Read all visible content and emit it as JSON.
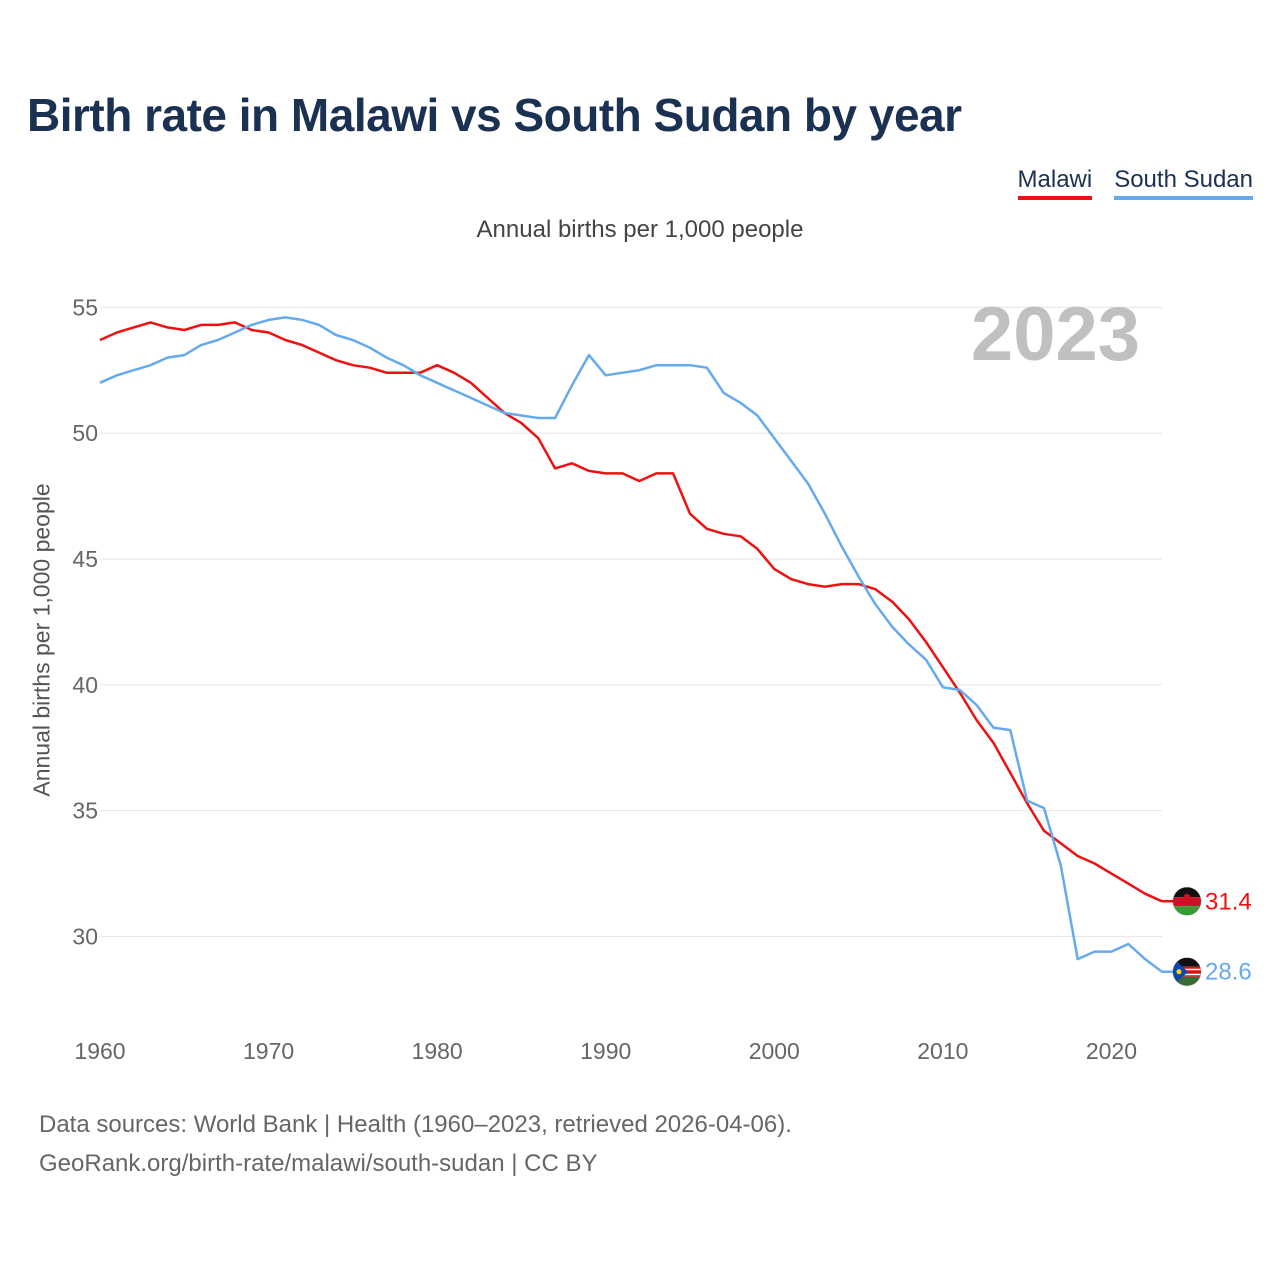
{
  "title": "Birth rate in Malawi vs South Sudan by year",
  "subtitle": "Annual births per 1,000 people",
  "year_badge": "2023",
  "legend": [
    {
      "label": "Malawi",
      "color": "#ee1111"
    },
    {
      "label": "South Sudan",
      "color": "#66aaee"
    }
  ],
  "source_lines": [
    "Data sources: World Bank | Health (1960–2023, retrieved 2026-04-06).",
    "GeoRank.org/birth-rate/malawi/south-sudan | CC BY"
  ],
  "chart_data": {
    "type": "line",
    "title": "Birth rate in Malawi vs South Sudan by year",
    "xlabel": "",
    "ylabel": "Annual births per 1,000 people",
    "xlim": [
      1960,
      2023
    ],
    "ylim": [
      27,
      56.8
    ],
    "grid": true,
    "x_ticks": [
      1960,
      1970,
      1980,
      1990,
      2000,
      2010,
      2020
    ],
    "y_ticks": [
      30,
      35,
      40,
      45,
      50,
      55
    ],
    "x": [
      1960,
      1961,
      1962,
      1963,
      1964,
      1965,
      1966,
      1967,
      1968,
      1969,
      1970,
      1971,
      1972,
      1973,
      1974,
      1975,
      1976,
      1977,
      1978,
      1979,
      1980,
      1981,
      1982,
      1983,
      1984,
      1985,
      1986,
      1987,
      1988,
      1989,
      1990,
      1991,
      1992,
      1993,
      1994,
      1995,
      1996,
      1997,
      1998,
      1999,
      2000,
      2001,
      2002,
      2003,
      2004,
      2005,
      2006,
      2007,
      2008,
      2009,
      2010,
      2011,
      2012,
      2013,
      2014,
      2015,
      2016,
      2017,
      2018,
      2019,
      2020,
      2021,
      2022,
      2023
    ],
    "series": [
      {
        "name": "Malawi",
        "color": "#ee1111",
        "end_label": "31.4",
        "values": [
          53.7,
          54.0,
          54.2,
          54.4,
          54.2,
          54.1,
          54.3,
          54.3,
          54.4,
          54.1,
          54.0,
          53.7,
          53.5,
          53.2,
          52.9,
          52.7,
          52.6,
          52.4,
          52.4,
          52.4,
          52.7,
          52.4,
          52.0,
          51.4,
          50.8,
          50.4,
          49.8,
          48.6,
          48.8,
          48.5,
          48.4,
          48.4,
          48.1,
          48.4,
          48.4,
          46.8,
          46.2,
          46.0,
          45.9,
          45.4,
          44.6,
          44.2,
          44.0,
          43.9,
          44.0,
          44.0,
          43.8,
          43.3,
          42.6,
          41.7,
          40.7,
          39.7,
          38.6,
          37.7,
          36.5,
          35.3,
          34.2,
          33.7,
          33.2,
          32.9,
          32.5,
          32.1,
          31.7,
          31.4
        ]
      },
      {
        "name": "South Sudan",
        "color": "#66aaee",
        "end_label": "28.6",
        "values": [
          52.0,
          52.3,
          52.5,
          52.7,
          53.0,
          53.1,
          53.5,
          53.7,
          54.0,
          54.3,
          54.5,
          54.6,
          54.5,
          54.3,
          53.9,
          53.7,
          53.4,
          53.0,
          52.7,
          52.3,
          52.0,
          51.7,
          51.4,
          51.1,
          50.8,
          50.7,
          50.6,
          50.6,
          51.9,
          53.1,
          52.3,
          52.4,
          52.5,
          52.7,
          52.7,
          52.7,
          52.6,
          51.6,
          51.2,
          50.7,
          49.8,
          48.9,
          48.0,
          46.8,
          45.5,
          44.3,
          43.2,
          42.3,
          41.6,
          41.0,
          39.9,
          39.8,
          39.2,
          38.3,
          38.2,
          35.4,
          35.1,
          32.8,
          29.1,
          29.4,
          29.4,
          29.7,
          29.1,
          28.6
        ]
      }
    ]
  }
}
